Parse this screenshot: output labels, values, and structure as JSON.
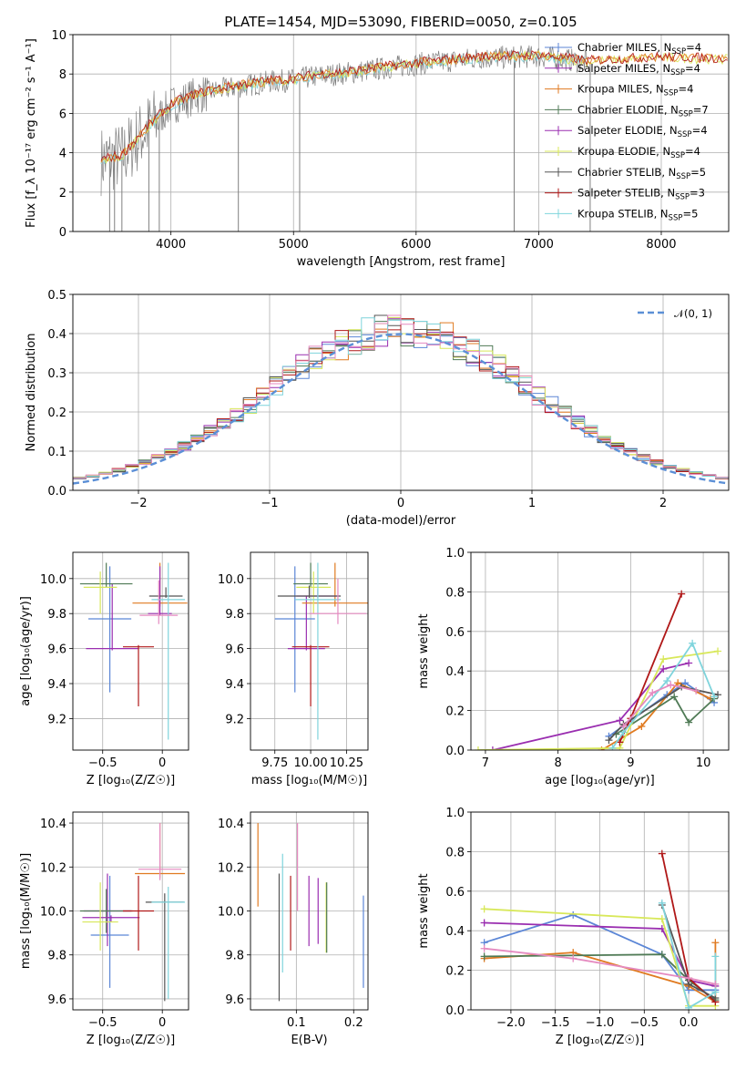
{
  "figure_title": "PLATE=1454, MJD=53090, FIBERID=0050, z=0.105",
  "colors": {
    "Chabrier MILES": "#5b86d6",
    "Salpeter MILES": "#9a2eb0",
    "Kroupa MILES": "#e07a20",
    "Chabrier ELODIE": "#4f7a55",
    "Salpeter ELODIE": "#9a2eb0",
    "Kroupa ELODIE": "#d8e85a",
    "Chabrier STELIB": "#555555",
    "Salpeter STELIB": "#b01818",
    "Kroupa STELIB": "#7fd4dc",
    "extra_pink": "#e58ac0",
    "normal": "#5b8fd6",
    "data_gray": "#808080"
  },
  "chart_data": [
    {
      "id": "spectrum",
      "type": "line",
      "xlabel": "wavelength [Angstrom, rest frame]",
      "ylabel": "Flux [f_λ 10⁻¹⁷ erg cm⁻² s⁻¹ A⁻¹]",
      "xlim": [
        3200,
        8550
      ],
      "ylim": [
        0,
        10
      ],
      "xticks": [
        4000,
        5000,
        6000,
        7000,
        8000
      ],
      "yticks": [
        0,
        2,
        4,
        6,
        8,
        10
      ],
      "legend": [
        {
          "label": "Chabrier MILES, N",
          "sub": "SSP",
          "eq": "=4",
          "color_key": "Chabrier MILES"
        },
        {
          "label": "Salpeter MILES, N",
          "sub": "SSP",
          "eq": "=4",
          "color_key": "Salpeter MILES"
        },
        {
          "label": "Kroupa MILES, N",
          "sub": "SSP",
          "eq": "=4",
          "color_key": "Kroupa MILES"
        },
        {
          "label": "Chabrier ELODIE, N",
          "sub": "SSP",
          "eq": "=7",
          "color_key": "Chabrier ELODIE"
        },
        {
          "label": "Salpeter ELODIE, N",
          "sub": "SSP",
          "eq": "=4",
          "color_key": "Salpeter ELODIE"
        },
        {
          "label": "Kroupa ELODIE, N",
          "sub": "SSP",
          "eq": "=4",
          "color_key": "Kroupa ELODIE"
        },
        {
          "label": "Chabrier STELIB, N",
          "sub": "SSP",
          "eq": "=5",
          "color_key": "Chabrier STELIB"
        },
        {
          "label": "Salpeter STELIB, N",
          "sub": "SSP",
          "eq": "=3",
          "color_key": "Salpeter STELIB"
        },
        {
          "label": "Kroupa STELIB, N",
          "sub": "SSP",
          "eq": "=5",
          "color_key": "Kroupa STELIB"
        }
      ],
      "continuum": {
        "x": [
          3430,
          3600,
          3700,
          3800,
          3900,
          4000,
          4200,
          4400,
          4600,
          4800,
          5000,
          5200,
          5500,
          6000,
          6500,
          7000,
          7400
        ],
        "y": [
          3.6,
          3.8,
          4.5,
          5.2,
          5.8,
          6.4,
          6.9,
          7.2,
          7.4,
          7.6,
          7.7,
          7.9,
          8.1,
          8.5,
          8.8,
          8.9,
          8.6
        ]
      },
      "model_end": {
        "x": [
          7400,
          8000,
          8550
        ],
        "y": [
          8.6,
          8.8,
          8.7
        ]
      },
      "spikes": [
        3500,
        3540,
        3600,
        3820,
        3905,
        4550,
        5050,
        6800,
        7420
      ]
    },
    {
      "id": "residuals",
      "type": "bar",
      "xlabel": "(data-model)/error",
      "ylabel": "Normed distribution",
      "xlim": [
        -2.5,
        2.5
      ],
      "ylim": [
        0,
        0.5
      ],
      "xticks": [
        -2,
        -1,
        0,
        1,
        2
      ],
      "yticks": [
        0.0,
        0.1,
        0.2,
        0.3,
        0.4,
        0.5
      ],
      "legend": [
        {
          "label": "𝒩(0, 1)",
          "color_key": "normal"
        }
      ],
      "bins": 50
    },
    {
      "id": "age_vs_Z",
      "type": "scatter",
      "xlabel": "Z [log₁₀(Z/Z☉)]",
      "ylabel": "age  [log₁₀(age/yr)]",
      "xlim": [
        -0.75,
        0.22
      ],
      "ylim": [
        9.02,
        10.15
      ],
      "xticks": [
        -0.5,
        0.0
      ],
      "yticks": [
        9.2,
        9.4,
        9.6,
        9.8,
        10.0
      ],
      "points": [
        {
          "x": -0.44,
          "y": 9.77,
          "xe": 0.18,
          "ye_lo": 0.42,
          "ye_hi": 0.3,
          "color_key": "Chabrier MILES"
        },
        {
          "x": -0.42,
          "y": 9.6,
          "xe": 0.22,
          "ye_lo": 0.01,
          "ye_hi": 0.37,
          "color_key": "Salpeter MILES"
        },
        {
          "x": -0.02,
          "y": 9.86,
          "xe": 0.23,
          "ye_lo": 0.02,
          "ye_hi": 0.23,
          "color_key": "Kroupa MILES"
        },
        {
          "x": -0.47,
          "y": 9.97,
          "xe": 0.22,
          "ye_lo": 0.02,
          "ye_hi": 0.12,
          "color_key": "Chabrier ELODIE"
        },
        {
          "x": -0.02,
          "y": 9.8,
          "xe": 0.1,
          "ye_lo": 0.01,
          "ye_hi": 0.27,
          "color_key": "Salpeter ELODIE"
        },
        {
          "x": -0.52,
          "y": 9.95,
          "xe": 0.14,
          "ye_lo": 0.15,
          "ye_hi": 0.09,
          "color_key": "Kroupa ELODIE"
        },
        {
          "x": 0.03,
          "y": 9.9,
          "xe": 0.14,
          "ye_lo": 0.01,
          "ye_hi": 0.05,
          "color_key": "Chabrier STELIB"
        },
        {
          "x": -0.2,
          "y": 9.61,
          "xe": 0.13,
          "ye_lo": 0.34,
          "ye_hi": 0.01,
          "color_key": "Salpeter STELIB"
        },
        {
          "x": 0.05,
          "y": 9.88,
          "xe": 0.14,
          "ye_lo": 0.8,
          "ye_hi": 0.21,
          "color_key": "Kroupa STELIB"
        },
        {
          "x": -0.03,
          "y": 9.79,
          "xe": 0.16,
          "ye_lo": 0.05,
          "ye_hi": 0.2,
          "color_key": "extra_pink"
        }
      ]
    },
    {
      "id": "age_vs_mass",
      "type": "scatter",
      "xlabel": "mass [log₁₀(M/M☉)]",
      "ylabel": "",
      "xlim": [
        9.58,
        10.4
      ],
      "ylim": [
        9.02,
        10.15
      ],
      "xticks": [
        9.75,
        10.0,
        10.25
      ],
      "tick_labels": [
        "9.75",
        "10.00",
        "10.25"
      ],
      "yticks": [
        9.2,
        9.4,
        9.6,
        9.8,
        10.0
      ],
      "points": [
        {
          "x": 9.89,
          "y": 9.77,
          "xe": 0.14,
          "ye_lo": 0.42,
          "ye_hi": 0.3,
          "color_key": "Chabrier MILES"
        },
        {
          "x": 9.97,
          "y": 9.6,
          "xe": 0.13,
          "ye_lo": 0.01,
          "ye_hi": 0.3,
          "color_key": "Salpeter MILES"
        },
        {
          "x": 10.17,
          "y": 9.86,
          "xe": 0.23,
          "ye_lo": 0.02,
          "ye_hi": 0.23,
          "color_key": "Kroupa MILES"
        },
        {
          "x": 10.0,
          "y": 9.97,
          "xe": 0.12,
          "ye_lo": 0.02,
          "ye_hi": 0.12,
          "color_key": "Chabrier ELODIE"
        },
        {
          "x": 10.05,
          "y": 9.9,
          "xe": 0.15,
          "ye_lo": 0.01,
          "ye_hi": 0.04,
          "color_key": "Salpeter ELODIE"
        },
        {
          "x": 10.02,
          "y": 9.95,
          "xe": 0.12,
          "ye_lo": 0.15,
          "ye_hi": 0.09,
          "color_key": "Kroupa ELODIE"
        },
        {
          "x": 9.99,
          "y": 9.9,
          "xe": 0.22,
          "ye_lo": 0.01,
          "ye_hi": 0.06,
          "color_key": "Chabrier STELIB"
        },
        {
          "x": 10.0,
          "y": 9.61,
          "xe": 0.13,
          "ye_lo": 0.34,
          "ye_hi": 0.01,
          "color_key": "Salpeter STELIB"
        },
        {
          "x": 10.05,
          "y": 9.88,
          "xe": 0.16,
          "ye_lo": 0.8,
          "ye_hi": 0.21,
          "color_key": "Kroupa STELIB"
        },
        {
          "x": 10.19,
          "y": 9.8,
          "xe": 0.2,
          "ye_lo": 0.06,
          "ye_hi": 0.2,
          "color_key": "extra_pink"
        }
      ]
    },
    {
      "id": "mass_weight_vs_age",
      "type": "line",
      "xlabel": "age  [log₁₀(age/yr)]",
      "ylabel": "mass weight",
      "xlim": [
        6.8,
        10.35
      ],
      "ylim": [
        0,
        1.0
      ],
      "xticks": [
        7,
        8,
        9,
        10
      ],
      "yticks": [
        0.0,
        0.2,
        0.4,
        0.6,
        0.8,
        1.0
      ],
      "series": [
        {
          "color_key": "Chabrier MILES",
          "x": [
            8.7,
            9.5,
            9.75,
            10.15
          ],
          "y": [
            0.07,
            0.28,
            0.34,
            0.24
          ]
        },
        {
          "color_key": "Salpeter MILES",
          "x": [
            7.1,
            8.85,
            9.45,
            9.8
          ],
          "y": [
            0.0,
            0.15,
            0.41,
            0.44
          ]
        },
        {
          "color_key": "Kroupa MILES",
          "x": [
            8.6,
            9.15,
            9.65,
            10.1
          ],
          "y": [
            0.0,
            0.12,
            0.34,
            0.26
          ]
        },
        {
          "color_key": "Chabrier ELODIE",
          "x": [
            8.8,
            9.6,
            9.8,
            10.15
          ],
          "y": [
            0.08,
            0.27,
            0.14,
            0.26
          ]
        },
        {
          "color_key": "Kroupa ELODIE",
          "x": [
            6.9,
            8.85,
            9.45,
            10.2
          ],
          "y": [
            0.0,
            0.01,
            0.46,
            0.5
          ]
        },
        {
          "color_key": "Salpeter STELIB",
          "x": [
            8.85,
            9.0,
            9.7
          ],
          "y": [
            0.04,
            0.16,
            0.79
          ]
        },
        {
          "color_key": "Chabrier STELIB",
          "x": [
            8.7,
            8.9,
            9.7,
            10.2
          ],
          "y": [
            0.05,
            0.13,
            0.32,
            0.28
          ]
        },
        {
          "color_key": "Kroupa STELIB",
          "x": [
            8.75,
            8.9,
            9.5,
            9.85,
            10.15
          ],
          "y": [
            0.01,
            0.09,
            0.35,
            0.54,
            0.27
          ]
        },
        {
          "color_key": "extra_pink",
          "x": [
            8.9,
            9.3,
            9.55,
            9.9
          ],
          "y": [
            0.12,
            0.29,
            0.33,
            0.3
          ]
        }
      ]
    },
    {
      "id": "mass_vs_Z",
      "type": "scatter",
      "xlabel": "Z [log₁₀(Z/Z☉)]",
      "ylabel": "mass [log₁₀(M/M☉)]",
      "xlim": [
        -0.75,
        0.22
      ],
      "ylim": [
        9.55,
        10.45
      ],
      "xticks": [
        -0.5,
        0.0
      ],
      "yticks": [
        9.6,
        9.8,
        10.0,
        10.2,
        10.4
      ],
      "points": [
        {
          "x": -0.44,
          "y": 9.89,
          "xe": 0.16,
          "ye_lo": 0.24,
          "ye_hi": 0.27,
          "color_key": "Chabrier MILES"
        },
        {
          "x": -0.46,
          "y": 10.0,
          "xe": 0.2,
          "ye_lo": 0.16,
          "ye_hi": 0.17,
          "color_key": "Salpeter MILES"
        },
        {
          "x": -0.02,
          "y": 10.17,
          "xe": 0.21,
          "ye_lo": 0.02,
          "ye_hi": 0.23,
          "color_key": "Kroupa MILES"
        },
        {
          "x": -0.47,
          "y": 10.0,
          "xe": 0.22,
          "ye_lo": 0.1,
          "ye_hi": 0.1,
          "color_key": "Chabrier ELODIE"
        },
        {
          "x": -0.43,
          "y": 9.97,
          "xe": 0.24,
          "ye_lo": 0.02,
          "ye_hi": 0.01,
          "color_key": "Salpeter ELODIE"
        },
        {
          "x": -0.52,
          "y": 9.95,
          "xe": 0.15,
          "ye_lo": 0.13,
          "ye_hi": 0.18,
          "color_key": "Kroupa ELODIE"
        },
        {
          "x": 0.02,
          "y": 10.04,
          "xe": 0.16,
          "ye_lo": 0.45,
          "ye_hi": 0.04,
          "color_key": "Chabrier STELIB"
        },
        {
          "x": -0.2,
          "y": 10.0,
          "xe": 0.13,
          "ye_lo": 0.18,
          "ye_hi": 0.16,
          "color_key": "Salpeter STELIB"
        },
        {
          "x": 0.05,
          "y": 10.04,
          "xe": 0.14,
          "ye_lo": 0.44,
          "ye_hi": 0.07,
          "color_key": "Kroupa STELIB"
        },
        {
          "x": -0.02,
          "y": 10.19,
          "xe": 0.18,
          "ye_lo": 0.05,
          "ye_hi": 0.21,
          "color_key": "extra_pink"
        }
      ]
    },
    {
      "id": "mass_vs_ebv",
      "type": "scatter",
      "xlabel": "E(B-V)",
      "ylabel": "",
      "xlim": [
        0.02,
        0.225
      ],
      "ylim": [
        9.55,
        10.45
      ],
      "xticks": [
        0.1,
        0.2
      ],
      "yticks": [
        9.6,
        9.8,
        10.0,
        10.2,
        10.4
      ],
      "points": [
        {
          "x": 0.033,
          "y": 10.2,
          "ye_lo": 0.18,
          "ye_hi": 0.2,
          "color_key": "Kroupa MILES"
        },
        {
          "x": 0.07,
          "y": 9.88,
          "ye_lo": 0.29,
          "ye_hi": 0.29,
          "color_key": "Chabrier STELIB"
        },
        {
          "x": 0.076,
          "y": 10.0,
          "ye_lo": 0.28,
          "ye_hi": 0.26,
          "color_key": "Kroupa STELIB"
        },
        {
          "x": 0.09,
          "y": 9.99,
          "ye_lo": 0.17,
          "ye_hi": 0.17,
          "color_key": "Salpeter STELIB"
        },
        {
          "x": 0.102,
          "y": 10.18,
          "ye_lo": 0.18,
          "ye_hi": 0.22,
          "color_key": "extra_pink"
        },
        {
          "x": 0.122,
          "y": 10.0,
          "ye_lo": 0.16,
          "ye_hi": 0.16,
          "color_key": "Salpeter MILES"
        },
        {
          "x": 0.138,
          "y": 10.0,
          "ye_lo": 0.15,
          "ye_hi": 0.15,
          "color_key": "Salpeter ELODIE"
        },
        {
          "x": 0.152,
          "y": 9.97,
          "ye_lo": 0.16,
          "ye_hi": 0.16,
          "color_key": "Kroupa ELODIE"
        },
        {
          "x": 0.153,
          "y": 10.0,
          "ye_lo": 0.19,
          "ye_hi": 0.13,
          "color_key": "Chabrier ELODIE"
        },
        {
          "x": 0.217,
          "y": 9.88,
          "ye_lo": 0.23,
          "ye_hi": 0.19,
          "color_key": "Chabrier MILES"
        }
      ]
    },
    {
      "id": "mass_weight_vs_Z",
      "type": "line",
      "xlabel": "Z [log₁₀(Z/Z☉)]",
      "ylabel": "mass weight",
      "xlim": [
        -2.45,
        0.45
      ],
      "ylim": [
        0,
        1.0
      ],
      "xticks": [
        -2.0,
        -1.5,
        -1.0,
        -0.5,
        0.0
      ],
      "tick_labels": [
        "−2.0",
        "−1.5",
        "−1.0",
        "−0.5",
        "0.0"
      ],
      "yticks": [
        0.0,
        0.2,
        0.4,
        0.6,
        0.8,
        1.0
      ],
      "series": [
        {
          "color_key": "Chabrier MILES",
          "x": [
            -2.3,
            -1.3,
            -0.3,
            0.0,
            0.3
          ],
          "y": [
            0.34,
            0.48,
            0.28,
            0.1,
            0.1
          ]
        },
        {
          "color_key": "Salpeter MILES",
          "x": [
            -2.3,
            -0.3,
            0.0,
            0.3
          ],
          "y": [
            0.44,
            0.41,
            0.15,
            0.12
          ]
        },
        {
          "color_key": "Kroupa MILES",
          "x": [
            -2.3,
            -1.3,
            0.0,
            0.3,
            0.3
          ],
          "y": [
            0.26,
            0.29,
            0.12,
            0.04,
            0.34
          ]
        },
        {
          "color_key": "Chabrier ELODIE",
          "x": [
            -2.3,
            -0.3,
            0.0,
            0.3
          ],
          "y": [
            0.27,
            0.28,
            0.15,
            0.05
          ]
        },
        {
          "color_key": "Kroupa ELODIE",
          "x": [
            -2.3,
            -0.3,
            0.0,
            0.3
          ],
          "y": [
            0.51,
            0.46,
            0.02,
            0.02
          ]
        },
        {
          "color_key": "Salpeter STELIB",
          "x": [
            -0.3,
            0.0,
            0.3
          ],
          "y": [
            0.79,
            0.16,
            0.04
          ]
        },
        {
          "color_key": "Chabrier STELIB",
          "x": [
            -0.3,
            0.0,
            0.3
          ],
          "y": [
            0.53,
            0.13,
            0.06
          ]
        },
        {
          "color_key": "Kroupa STELIB",
          "x": [
            -0.3,
            0.0,
            0.3,
            0.3
          ],
          "y": [
            0.54,
            0.01,
            0.09,
            0.27
          ]
        },
        {
          "color_key": "extra_pink",
          "x": [
            -2.3,
            -1.3,
            0.0,
            0.3
          ],
          "y": [
            0.31,
            0.26,
            0.16,
            0.13
          ]
        }
      ]
    }
  ]
}
